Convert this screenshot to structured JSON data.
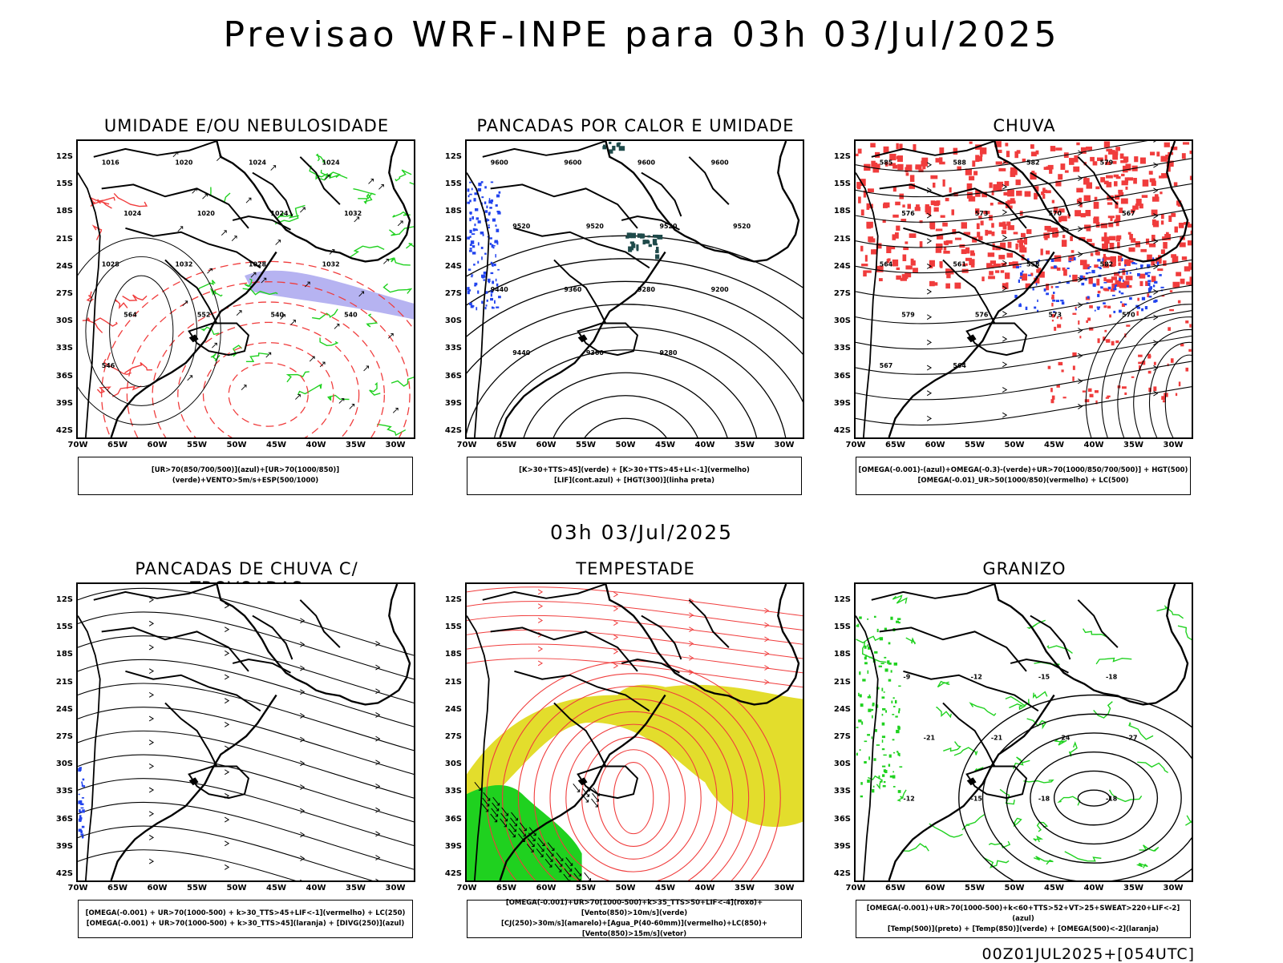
{
  "header": {
    "title": "Previsao WRF-INPE  para 03h 03/Jul/2025"
  },
  "subtitle": "03h 03/Jul/2025",
  "footer": "00Z01JUL2025+[054UTC]",
  "axes": {
    "lat_labels": [
      "12S",
      "15S",
      "18S",
      "21S",
      "24S",
      "27S",
      "30S",
      "33S",
      "36S",
      "39S",
      "42S"
    ],
    "lon_labels": [
      "70W",
      "65W",
      "60W",
      "55W",
      "50W",
      "45W",
      "40W",
      "35W",
      "30W"
    ]
  },
  "colors": {
    "green": "#1fd11f",
    "red": "#f03c3c",
    "blue": "#2244ee",
    "lavender": "#a9a6ee",
    "yellow": "#e3dd2c",
    "dark_teal": "#1e4a4a"
  },
  "panels": [
    {
      "id": "umidade",
      "title": "UMIDADE E/OU NEBULOSIDADE",
      "legend": [
        "[UR>70(850/700/500)](azul)+[UR>70(1000/850)](verde)+VENTO>5m/s+ESP(500/1000)"
      ],
      "contour_labels": [
        "1016",
        "1020",
        "1024",
        "1024",
        "1024",
        "1020",
        "1024",
        "1032",
        "1028",
        "1032",
        "1028",
        "1032",
        "564",
        "552",
        "540",
        "540",
        "546"
      ]
    },
    {
      "id": "pancadas_calor",
      "title": "PANCADAS POR CALOR E UMIDADE",
      "legend": [
        "[K>30+TTS>45](verde) + [K>30+TTS>45+LI<-1](vermelho)",
        "[LIF](cont.azul) + [HGT(300)](linha preta)"
      ],
      "contour_labels": [
        "9600",
        "9600",
        "9600",
        "9600",
        "9520",
        "9520",
        "9520",
        "9520",
        "9440",
        "9360",
        "9280",
        "9200",
        "9440",
        "9360",
        "9280"
      ]
    },
    {
      "id": "chuva",
      "title": "CHUVA",
      "legend": [
        "[OMEGA(-0.001)-(azul)+OMEGA(-0.3)-(verde)+UR>70(1000/850/700/500)] + HGT(500)",
        "[OMEGA(-0.01)_UR>50(1000/850)(vermelho) + LC(500)"
      ],
      "contour_labels": [
        "585",
        "588",
        "582",
        "579",
        "576",
        "573",
        "570",
        "567",
        "564",
        "561",
        "558",
        "582",
        "579",
        "576",
        "573",
        "570",
        "567",
        "564"
      ]
    },
    {
      "id": "trovoadas",
      "title": "PANCADAS DE CHUVA C/ TROVOADAS",
      "legend": [
        "[OMEGA(-0.001) + UR>70(1000-500) + k>30_TTS>45+LIF<-1](vermelho) + LC(250)",
        "[OMEGA(-0.001) + UR>70(1000-500) + k>30_TTS>45](laranja) + [DIVG(250)](azul)"
      ],
      "contour_labels": []
    },
    {
      "id": "tempestade",
      "title": "TEMPESTADE",
      "legend": [
        "[OMEGA(-0.001)+UR>70(1000-500)+k>35_TTS>50+LIF<-4](roxo)+[Vento(850)>10m/s](verde)",
        "[CJ(250)>30m/s](amarelo)+[Agua_P(40-60mm)](vermelho)+LC(850)+[Vento(850)>15m/s](vetor)"
      ],
      "contour_labels": []
    },
    {
      "id": "granizo",
      "title": "GRANIZO",
      "legend": [
        "[OMEGA(-0.001)+UR>70(1000-500)+k<60+TTS>52+VT>25+SWEAT>220+LIF<-2](azul)",
        "[Temp(500)](preto) + [Temp(850)](verde) + [OMEGA(500)<-2](laranja)"
      ],
      "contour_labels": [
        "-9",
        "-12",
        "-15",
        "-18",
        "-21",
        "-21",
        "-24",
        "-27",
        "-12",
        "-15",
        "-18",
        "-18"
      ]
    }
  ]
}
